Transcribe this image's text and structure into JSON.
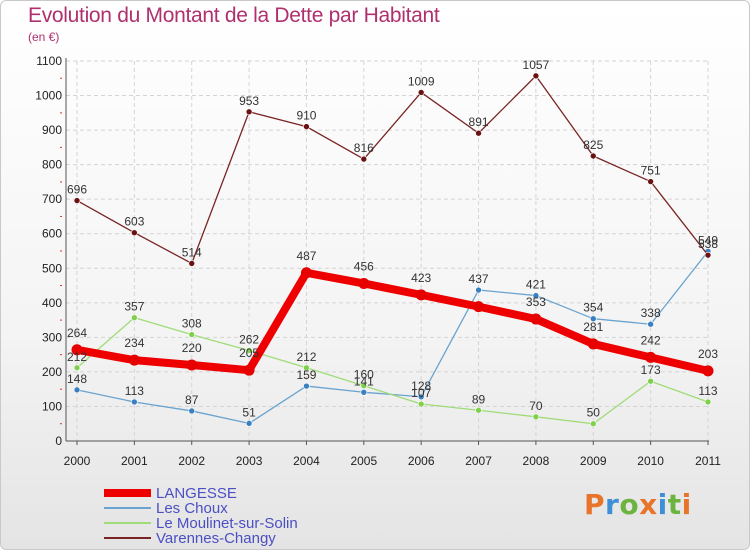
{
  "header": {
    "title": "Evolution du Montant de la Dette par Habitant",
    "unit": "(en €)"
  },
  "logo": {
    "text": "Proxiti",
    "colors": [
      "#e8742b",
      "#3f8fd6",
      "#6db33f",
      "#e8742b",
      "#3f8fd6",
      "#6db33f",
      "#e8742b"
    ]
  },
  "chart_data": {
    "type": "line",
    "title": "Evolution du Montant de la Dette par Habitant",
    "ylabel": "(en €)",
    "xlabel": "",
    "x": [
      "2000",
      "2001",
      "2002",
      "2003",
      "2004",
      "2005",
      "2006",
      "2007",
      "2008",
      "2009",
      "2010",
      "2011"
    ],
    "ylim": [
      0,
      1100
    ],
    "yticks": [
      0,
      100,
      200,
      300,
      400,
      500,
      600,
      700,
      800,
      900,
      1000,
      1100
    ],
    "grid": true,
    "legend_position": "bottom-left",
    "series": [
      {
        "name": "LANGESSE",
        "color": "#ee0000",
        "marker": "#e60000",
        "values": [
          264,
          234,
          220,
          205,
          487,
          456,
          423,
          389,
          353,
          281,
          242,
          203
        ],
        "labels": [
          "264",
          "234",
          "220",
          "205",
          "487",
          "456",
          "423",
          "",
          "353",
          "281",
          "242",
          "203"
        ]
      },
      {
        "name": "Les Choux",
        "color": "#6aa3cf",
        "marker": "#3a80c0",
        "values": [
          148,
          113,
          87,
          51,
          159,
          141,
          128,
          437,
          421,
          354,
          338,
          549
        ],
        "labels": [
          "148",
          "113",
          "87",
          "51",
          "159",
          "141",
          "128",
          "437",
          "421",
          "354",
          "338",
          "549"
        ]
      },
      {
        "name": "Le Moulinet-sur-Solin",
        "color": "#9fdc78",
        "marker": "#7fd04c",
        "values": [
          212,
          357,
          308,
          262,
          212,
          160,
          107,
          89,
          70,
          50,
          173,
          113
        ],
        "labels": [
          "212",
          "357",
          "308",
          "262",
          "212",
          "160",
          "107",
          "89",
          "70",
          "50",
          "173",
          "113"
        ]
      },
      {
        "name": "Varennes-Changy",
        "color": "#7a2424",
        "marker": "#6a1212",
        "values": [
          696,
          603,
          514,
          953,
          910,
          816,
          1009,
          891,
          1057,
          825,
          751,
          538
        ],
        "labels": [
          "696",
          "603",
          "514",
          "953",
          "910",
          "816",
          "1009",
          "891",
          "1057",
          "825",
          "751",
          "538"
        ]
      }
    ]
  }
}
